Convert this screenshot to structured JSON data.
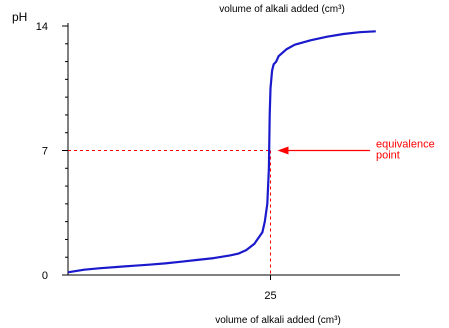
{
  "chart_data": {
    "type": "line",
    "title": "volume of alkali added (cm³)",
    "xlabel": "volume of alkali added (cm³)",
    "ylabel": "pH",
    "xlim": [
      0,
      40
    ],
    "ylim": [
      0,
      14
    ],
    "x_tick_labels": [
      {
        "value": 25,
        "label": "25"
      }
    ],
    "y_tick_labels": [
      {
        "value": 0,
        "label": "0"
      },
      {
        "value": 7,
        "label": "7"
      },
      {
        "value": 14,
        "label": "14"
      }
    ],
    "y_minor_ticks": [
      1,
      2,
      3,
      4,
      5,
      6,
      7,
      8,
      9,
      10,
      11,
      12,
      13
    ],
    "grid": false,
    "line_color": "#1a1acc",
    "guide_color": "#ff0000",
    "annotation": {
      "text_line1": "equivalence",
      "text_line2": "point",
      "x": 25,
      "y": 7,
      "color": "#ff0000"
    },
    "series": [
      {
        "x": [
          0,
          2,
          4,
          6,
          8,
          10,
          12,
          14,
          16,
          18,
          20,
          21,
          22,
          23,
          24,
          24.3,
          24.6,
          24.8,
          24.9,
          25,
          25.1,
          25.2,
          25.4,
          25.7,
          26,
          27,
          28,
          30,
          32,
          34,
          36,
          38
        ],
        "y": [
          0.15,
          0.3,
          0.38,
          0.45,
          0.52,
          0.58,
          0.65,
          0.75,
          0.85,
          0.95,
          1.1,
          1.2,
          1.4,
          1.75,
          2.4,
          3.0,
          4.0,
          6.0,
          9.0,
          10.5,
          11.0,
          11.5,
          11.85,
          12.0,
          12.3,
          12.7,
          12.95,
          13.2,
          13.4,
          13.55,
          13.65,
          13.7
        ]
      }
    ]
  }
}
